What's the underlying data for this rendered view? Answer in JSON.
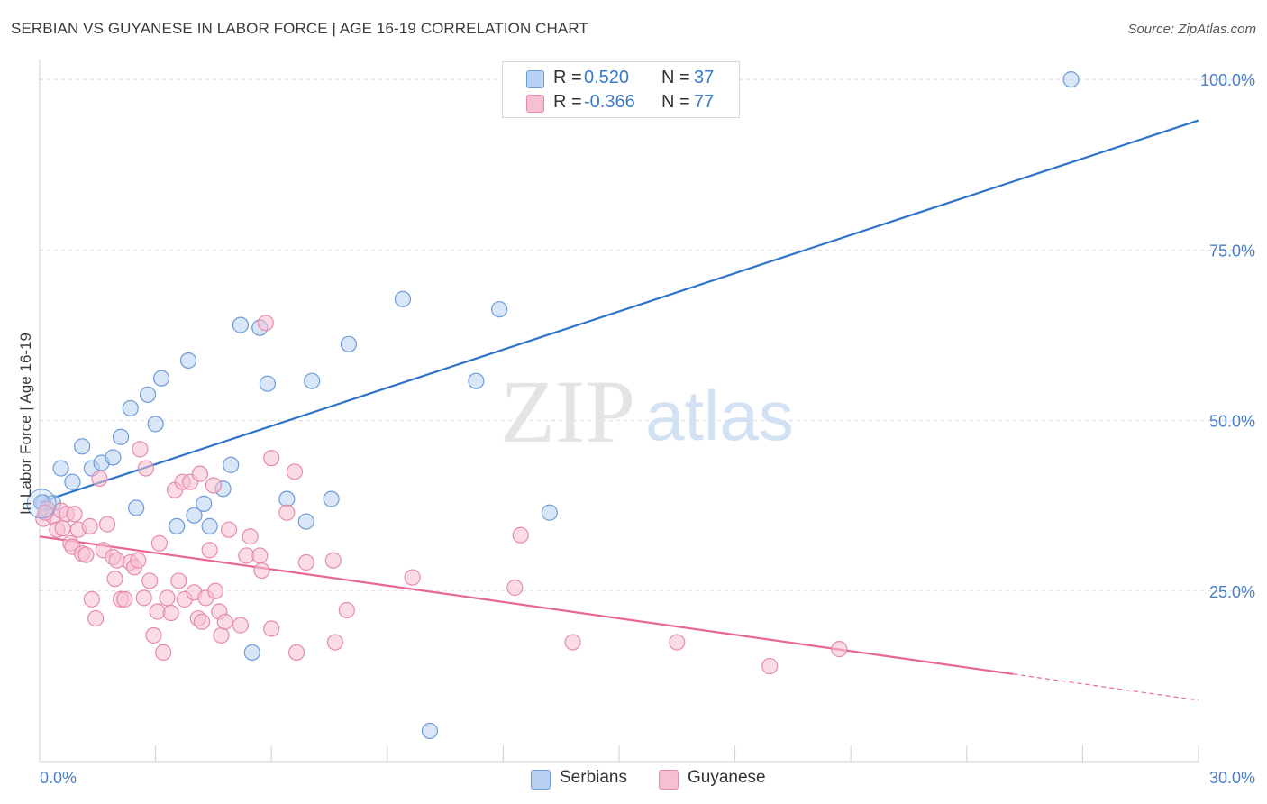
{
  "title": "SERBIAN VS GUYANESE IN LABOR FORCE | AGE 16-19 CORRELATION CHART",
  "source": "Source: ZipAtlas.com",
  "watermark": {
    "zip": "ZIP",
    "atlas": "atlas"
  },
  "legend": {
    "rows": [
      {
        "r_label": "R =",
        "r_value": "0.520",
        "n_label": "N =",
        "n_value": "37"
      },
      {
        "r_label": "R =",
        "r_value": "-0.366",
        "n_label": "N =",
        "n_value": "77"
      }
    ]
  },
  "bottom_legend": {
    "serbians": "Serbians",
    "guyanese": "Guyanese"
  },
  "colors": {
    "serbians_fill": "#b8d1f3",
    "serbians_stroke": "#6d9bd9",
    "serbians_line": "#2f72c9",
    "guyanese_fill": "#f7c0d1",
    "guyanese_stroke": "#e88aaa",
    "guyanese_line": "#e8669a",
    "tick_text": "#4a7fc9",
    "grid": "#dcdcdc"
  },
  "chart_data": {
    "type": "scatter",
    "title": "SERBIAN VS GUYANESE IN LABOR FORCE | AGE 16-19 CORRELATION CHART",
    "xlabel": "",
    "ylabel": "In Labor Force | Age 16-19",
    "xlim": [
      0,
      30
    ],
    "ylim": [
      0,
      102
    ],
    "x_tick_labels": [
      "0.0%",
      "30.0%"
    ],
    "y_ticks": [
      25,
      50,
      75,
      100
    ],
    "y_tick_labels": [
      "25.0%",
      "50.0%",
      "75.0%",
      "100.0%"
    ],
    "grid": true,
    "legend_position": "top-center",
    "series": [
      {
        "name": "Serbians",
        "r": 0.52,
        "n": 37,
        "trend": {
          "x0": 0,
          "y0": 38.0,
          "x1": 30,
          "y1": 94.0,
          "solid_to": 30
        },
        "points": [
          [
            0.1,
            38.0
          ],
          [
            0.35,
            37.9
          ],
          [
            0.55,
            43.0
          ],
          [
            0.85,
            41.0
          ],
          [
            1.1,
            46.2
          ],
          [
            1.35,
            43.0
          ],
          [
            1.6,
            43.8
          ],
          [
            1.9,
            44.6
          ],
          [
            2.1,
            47.6
          ],
          [
            2.35,
            51.8
          ],
          [
            2.5,
            37.2
          ],
          [
            2.8,
            53.8
          ],
          [
            3.0,
            49.5
          ],
          [
            3.15,
            56.2
          ],
          [
            3.55,
            34.5
          ],
          [
            3.85,
            58.8
          ],
          [
            4.0,
            36.1
          ],
          [
            4.25,
            37.8
          ],
          [
            4.4,
            34.5
          ],
          [
            4.75,
            40.0
          ],
          [
            4.95,
            43.5
          ],
          [
            5.2,
            64.0
          ],
          [
            5.5,
            16.0
          ],
          [
            5.7,
            63.6
          ],
          [
            5.9,
            55.4
          ],
          [
            6.4,
            38.5
          ],
          [
            6.9,
            35.2
          ],
          [
            7.05,
            55.8
          ],
          [
            7.55,
            38.5
          ],
          [
            8.0,
            61.2
          ],
          [
            9.4,
            67.8
          ],
          [
            10.1,
            4.5
          ],
          [
            11.3,
            55.8
          ],
          [
            11.9,
            66.3
          ],
          [
            13.2,
            36.5
          ],
          [
            26.7,
            100.0
          ],
          [
            0.05,
            38.0
          ]
        ]
      },
      {
        "name": "Guyanese",
        "r": -0.366,
        "n": 77,
        "trend": {
          "x0": 0,
          "y0": 33.0,
          "x1": 30,
          "y1": 9.0,
          "solid_to": 25.2
        },
        "points": [
          [
            0.1,
            35.6
          ],
          [
            0.2,
            37.0
          ],
          [
            0.35,
            36.0
          ],
          [
            0.45,
            34.0
          ],
          [
            0.55,
            36.8
          ],
          [
            0.6,
            34.2
          ],
          [
            0.7,
            36.3
          ],
          [
            0.8,
            32.0
          ],
          [
            0.85,
            31.5
          ],
          [
            0.9,
            36.3
          ],
          [
            1.0,
            34.0
          ],
          [
            1.1,
            30.5
          ],
          [
            1.2,
            30.3
          ],
          [
            1.3,
            34.5
          ],
          [
            1.35,
            23.8
          ],
          [
            1.45,
            21.0
          ],
          [
            1.55,
            41.5
          ],
          [
            1.65,
            31.0
          ],
          [
            1.75,
            34.8
          ],
          [
            1.9,
            30.0
          ],
          [
            1.95,
            26.8
          ],
          [
            2.0,
            29.5
          ],
          [
            2.1,
            23.8
          ],
          [
            2.2,
            23.8
          ],
          [
            2.35,
            29.2
          ],
          [
            2.45,
            28.5
          ],
          [
            2.55,
            29.5
          ],
          [
            2.6,
            45.8
          ],
          [
            2.7,
            24.0
          ],
          [
            2.75,
            43.0
          ],
          [
            2.85,
            26.5
          ],
          [
            2.95,
            18.5
          ],
          [
            3.05,
            22.0
          ],
          [
            3.1,
            32.0
          ],
          [
            3.2,
            16.0
          ],
          [
            3.3,
            24.0
          ],
          [
            3.4,
            21.8
          ],
          [
            3.5,
            39.8
          ],
          [
            3.6,
            26.5
          ],
          [
            3.7,
            41.0
          ],
          [
            3.75,
            23.8
          ],
          [
            3.9,
            41.0
          ],
          [
            4.0,
            24.8
          ],
          [
            4.1,
            21.0
          ],
          [
            4.15,
            42.2
          ],
          [
            4.2,
            20.5
          ],
          [
            4.3,
            24.0
          ],
          [
            4.4,
            31.0
          ],
          [
            4.5,
            40.5
          ],
          [
            4.55,
            25.0
          ],
          [
            4.65,
            22.0
          ],
          [
            4.7,
            18.5
          ],
          [
            4.8,
            20.5
          ],
          [
            4.9,
            34.0
          ],
          [
            5.2,
            20.0
          ],
          [
            5.35,
            30.2
          ],
          [
            5.45,
            33.0
          ],
          [
            5.7,
            30.2
          ],
          [
            5.75,
            28.0
          ],
          [
            5.85,
            64.3
          ],
          [
            6.0,
            44.5
          ],
          [
            6.0,
            19.5
          ],
          [
            6.4,
            36.5
          ],
          [
            6.6,
            42.5
          ],
          [
            6.65,
            16.0
          ],
          [
            6.9,
            29.2
          ],
          [
            7.6,
            29.5
          ],
          [
            7.65,
            17.5
          ],
          [
            7.95,
            22.2
          ],
          [
            9.65,
            27.0
          ],
          [
            12.3,
            25.5
          ],
          [
            12.45,
            33.2
          ],
          [
            13.8,
            17.5
          ],
          [
            16.5,
            17.5
          ],
          [
            18.9,
            14.0
          ],
          [
            20.7,
            16.5
          ],
          [
            0.15,
            36.5
          ]
        ]
      }
    ]
  }
}
